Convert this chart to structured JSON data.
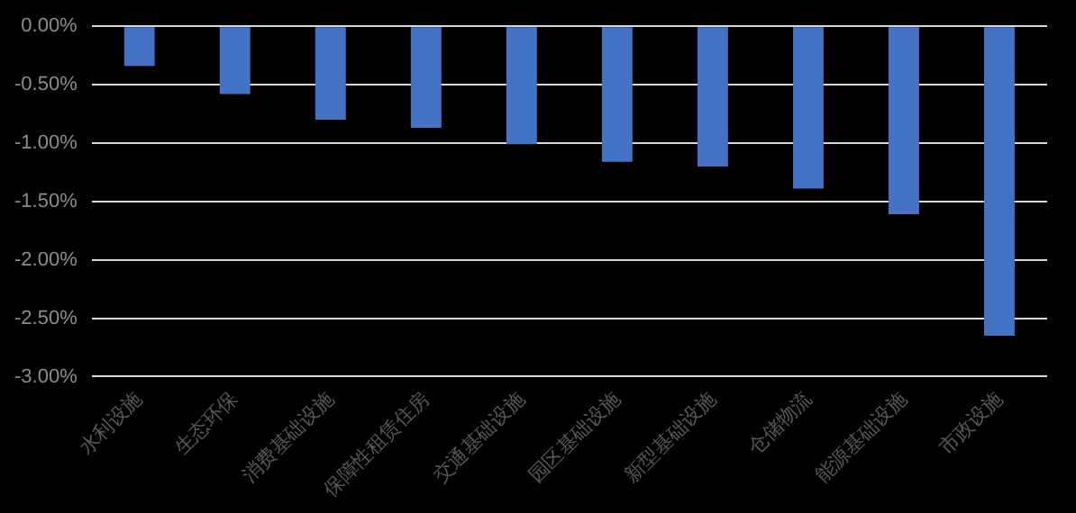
{
  "chart_data": {
    "type": "bar",
    "categories": [
      "水利设施",
      "生态环保",
      "消费基础设施",
      "保障性租赁住房",
      "交通基础设施",
      "园区基础设施",
      "新型基础设施",
      "仓储物流",
      "能源基础设施",
      "市政设施"
    ],
    "values": [
      -0.34,
      -0.58,
      -0.8,
      -0.87,
      -1.01,
      -1.16,
      -1.2,
      -1.39,
      -1.61,
      -2.65
    ],
    "color": "#4472c4",
    "ylim": [
      -3,
      0
    ],
    "yticks": [
      {
        "value": 0,
        "label": "0.00%"
      },
      {
        "value": -0.5,
        "label": "-0.50%"
      },
      {
        "value": -1,
        "label": "-1.00%"
      },
      {
        "value": -1.5,
        "label": "-1.50%"
      },
      {
        "value": -2,
        "label": "-2.00%"
      },
      {
        "value": -2.5,
        "label": "-2.50%"
      },
      {
        "value": -3,
        "label": "-3.00%"
      }
    ],
    "grid": "y",
    "legend": false
  }
}
